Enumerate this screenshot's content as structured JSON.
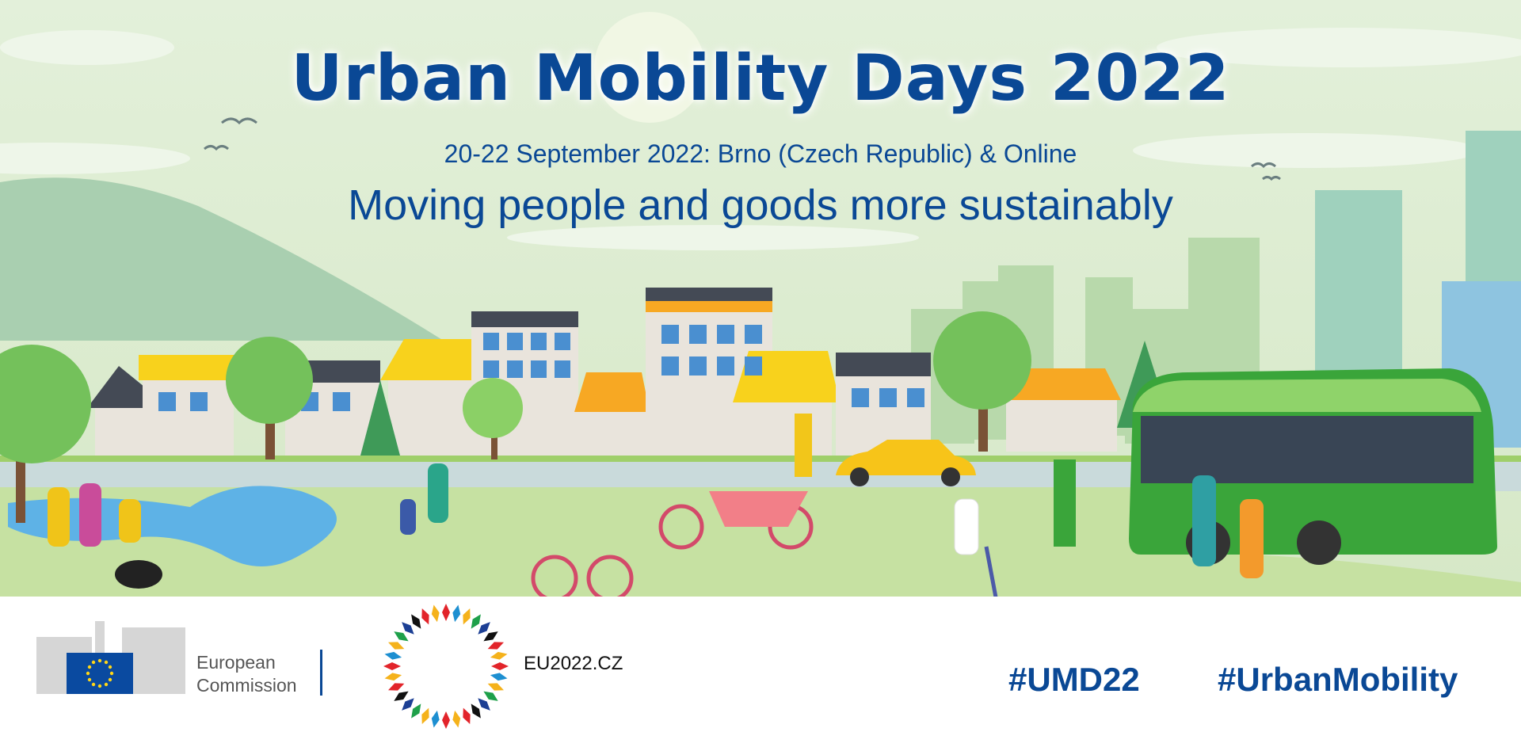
{
  "banner": {
    "title": "Urban Mobility Days 2022",
    "subtitle": "20-22 September 2022: Brno (Czech Republic) & Online",
    "tagline": "Moving people and goods more sustainably"
  },
  "footer": {
    "ec_logo": {
      "line1": "European",
      "line2": "Commission"
    },
    "presidency_logo": {
      "text": "EU2022.CZ"
    },
    "hashtags": [
      "#UMD22",
      "#UrbanMobility"
    ]
  },
  "colors": {
    "brand_blue": "#0a4895",
    "sky": "#dfeed5",
    "grass": "#c6e1a2",
    "road": "#c9dadb",
    "bus_green": "#3aa53a"
  },
  "illustration": {
    "icons": [
      "city-skyline",
      "houses",
      "trees",
      "pond",
      "electric-bus",
      "taxi",
      "charging-station",
      "cyclist",
      "cargo-bike",
      "scooter",
      "pedestrians",
      "dog"
    ]
  }
}
